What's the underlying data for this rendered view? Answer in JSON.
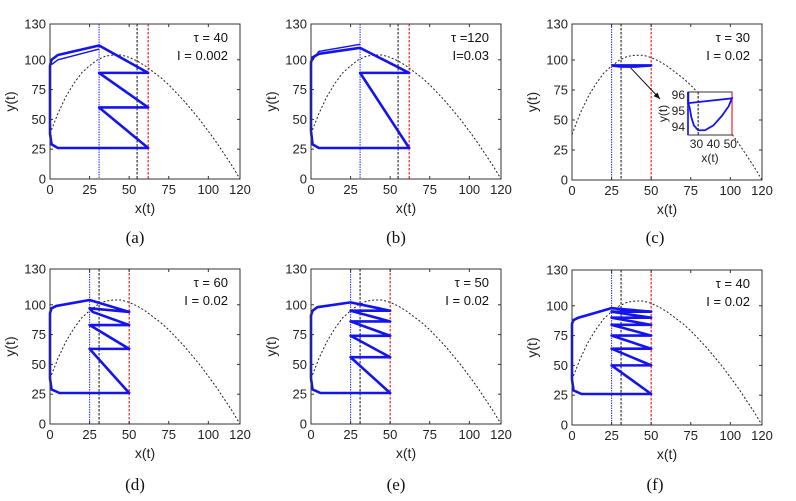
{
  "chart_data": {
    "type": "line",
    "xlabel": "x(t)",
    "ylabel": "y(t)",
    "xlim": [
      0,
      120
    ],
    "ylim": [
      0,
      130
    ],
    "xticks": [
      0,
      25,
      50,
      75,
      100,
      120
    ],
    "yticks": [
      0,
      25,
      50,
      75,
      100,
      130
    ],
    "colors": {
      "trajectory": "#1414ee",
      "lower_threshold": "#3a3aff",
      "middle_threshold": "#222222",
      "upper_threshold": "#ee1111",
      "nullcline": "#222222"
    },
    "nullcline": [
      [
        0,
        38
      ],
      [
        5,
        55
      ],
      [
        10,
        69
      ],
      [
        15,
        80
      ],
      [
        20,
        89
      ],
      [
        25,
        95
      ],
      [
        30,
        100
      ],
      [
        35,
        103
      ],
      [
        40,
        104
      ],
      [
        45,
        104
      ],
      [
        50,
        102
      ],
      [
        55,
        99
      ],
      [
        60,
        95
      ],
      [
        65,
        90
      ],
      [
        70,
        85
      ],
      [
        75,
        79
      ],
      [
        80,
        72
      ],
      [
        85,
        65
      ],
      [
        90,
        57
      ],
      [
        95,
        49
      ],
      [
        100,
        40
      ],
      [
        105,
        31
      ],
      [
        110,
        21
      ],
      [
        115,
        11
      ],
      [
        120,
        0
      ]
    ],
    "panels": [
      {
        "label": "(a)",
        "tau": "τ = 40",
        "I": "I = 0.002",
        "thresholds": {
          "lower": 31,
          "middle": 55,
          "upper": 62
        },
        "trajectory": [
          [
            0,
            38
          ],
          [
            0,
            95
          ],
          [
            1,
            100
          ],
          [
            5,
            104
          ],
          [
            31,
            112
          ],
          [
            62,
            89
          ],
          [
            31,
            89
          ],
          [
            62,
            60
          ],
          [
            31,
            60
          ],
          [
            62,
            26
          ],
          [
            5,
            26
          ],
          [
            1,
            29
          ],
          [
            0,
            38
          ]
        ],
        "secondary": [
          [
            1,
            96
          ],
          [
            5,
            100
          ],
          [
            31,
            109
          ]
        ]
      },
      {
        "label": "(b)",
        "tau": "τ =120",
        "I": "I=0.03",
        "thresholds": {
          "lower": 31,
          "middle": 55,
          "upper": 62
        },
        "trajectory": [
          [
            0,
            40
          ],
          [
            0,
            98
          ],
          [
            1,
            102
          ],
          [
            5,
            105
          ],
          [
            31,
            110
          ],
          [
            62,
            89
          ],
          [
            31,
            89
          ],
          [
            62,
            26
          ],
          [
            5,
            26
          ],
          [
            1,
            29
          ],
          [
            0,
            40
          ]
        ],
        "secondary": [
          [
            1,
            100
          ],
          [
            5,
            107
          ],
          [
            31,
            113
          ]
        ]
      },
      {
        "label": "(c)",
        "tau": "τ = 30",
        "I": "I = 0.02",
        "thresholds": {
          "lower": 25,
          "middle": 31,
          "upper": 50
        },
        "trajectory": [
          [
            25,
            95.5
          ],
          [
            31,
            94.5
          ],
          [
            40,
            94.5
          ],
          [
            50,
            95.5
          ],
          [
            25,
            95.5
          ]
        ],
        "secondary": [],
        "inset": {
          "xlim": [
            25,
            51
          ],
          "ylim": [
            93.5,
            96.2
          ],
          "xticks": [
            30,
            40,
            50
          ],
          "yticks": [
            94,
            95,
            96
          ],
          "xlabel": "x(t)",
          "ylabel": "y(t)",
          "trajectory": [
            [
              25.2,
              96.2
            ],
            [
              25.2,
              95.5
            ],
            [
              26,
              95.2
            ],
            [
              27,
              94.6
            ],
            [
              28.5,
              94.1
            ],
            [
              31,
              93.8
            ],
            [
              35,
              93.8
            ],
            [
              40,
              94.1
            ],
            [
              45,
              94.7
            ],
            [
              49,
              95.3
            ],
            [
              51,
              95.8
            ],
            [
              25.2,
              95.5
            ]
          ]
        }
      },
      {
        "label": "(d)",
        "tau": "τ = 60",
        "I": "I = 0.02",
        "thresholds": {
          "lower": 25,
          "middle": 31,
          "upper": 50
        },
        "trajectory": [
          [
            0,
            38
          ],
          [
            0,
            93
          ],
          [
            1,
            97
          ],
          [
            4,
            99
          ],
          [
            25,
            104
          ],
          [
            50,
            94
          ],
          [
            25,
            97
          ],
          [
            27,
            94
          ],
          [
            50,
            83
          ],
          [
            25,
            83
          ],
          [
            50,
            63
          ],
          [
            25,
            63
          ],
          [
            50,
            26
          ],
          [
            6,
            26
          ],
          [
            1,
            29
          ],
          [
            0,
            38
          ]
        ],
        "secondary": []
      },
      {
        "label": "(e)",
        "tau": "τ = 50",
        "I": "I = 0.02",
        "thresholds": {
          "lower": 25,
          "middle": 31,
          "upper": 50
        },
        "trajectory": [
          [
            0,
            38
          ],
          [
            0,
            91
          ],
          [
            1,
            95
          ],
          [
            4,
            98
          ],
          [
            25,
            102
          ],
          [
            50,
            95
          ],
          [
            25,
            95
          ],
          [
            50,
            86
          ],
          [
            25,
            86
          ],
          [
            50,
            74
          ],
          [
            25,
            74
          ],
          [
            50,
            56
          ],
          [
            25,
            56
          ],
          [
            50,
            26
          ],
          [
            6,
            26
          ],
          [
            1,
            29
          ],
          [
            0,
            38
          ]
        ],
        "secondary": []
      },
      {
        "label": "(f)",
        "tau": "τ = 40",
        "I": "I = 0.02",
        "thresholds": {
          "lower": 25,
          "middle": 31,
          "upper": 50
        },
        "trajectory": [
          [
            0,
            38
          ],
          [
            0,
            85
          ],
          [
            1,
            88
          ],
          [
            4,
            90
          ],
          [
            25,
            98
          ],
          [
            50,
            95
          ],
          [
            25,
            95
          ],
          [
            50,
            90
          ],
          [
            25,
            90
          ],
          [
            50,
            84
          ],
          [
            25,
            84
          ],
          [
            50,
            75
          ],
          [
            25,
            75
          ],
          [
            50,
            64
          ],
          [
            25,
            64
          ],
          [
            50,
            50
          ],
          [
            25,
            50
          ],
          [
            50,
            26
          ],
          [
            6,
            26
          ],
          [
            1,
            29
          ],
          [
            0,
            38
          ]
        ],
        "secondary": []
      }
    ]
  }
}
